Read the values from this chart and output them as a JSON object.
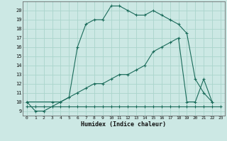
{
  "xlabel": "Humidex (Indice chaleur)",
  "bg_color": "#cce8e4",
  "line_color": "#1a6b5a",
  "grid_color": "#aad4cc",
  "xlim": [
    -0.5,
    23.5
  ],
  "ylim": [
    8.5,
    21.0
  ],
  "xticks": [
    0,
    1,
    2,
    3,
    4,
    5,
    6,
    7,
    8,
    9,
    10,
    11,
    12,
    13,
    14,
    15,
    16,
    17,
    18,
    19,
    20,
    21,
    22,
    23
  ],
  "yticks": [
    9,
    10,
    11,
    12,
    13,
    14,
    15,
    16,
    17,
    18,
    19,
    20
  ],
  "line1_x": [
    0,
    1,
    2,
    3,
    4,
    5,
    6,
    7,
    8,
    9,
    10,
    11,
    12,
    13,
    14,
    15,
    16,
    17,
    18,
    19,
    20,
    21,
    22
  ],
  "line1_y": [
    10,
    9,
    9,
    9.5,
    10,
    10.5,
    16,
    18.5,
    19,
    19,
    20.5,
    20.5,
    20,
    19.5,
    19.5,
    20,
    19.5,
    19,
    18.5,
    17.5,
    12.5,
    11,
    10
  ],
  "line2_x": [
    0,
    3,
    4,
    5,
    6,
    7,
    8,
    9,
    10,
    11,
    12,
    13,
    14,
    15,
    16,
    17,
    18,
    19,
    20,
    21,
    22
  ],
  "line2_y": [
    10,
    10,
    10,
    10.5,
    11,
    11.5,
    12,
    12,
    12.5,
    13,
    13,
    13.5,
    14,
    15.5,
    16,
    16.5,
    17,
    10,
    10,
    12.5,
    10
  ],
  "line3_x": [
    0,
    1,
    2,
    3,
    4,
    5,
    6,
    7,
    8,
    9,
    10,
    11,
    12,
    13,
    14,
    15,
    16,
    17,
    18,
    19,
    20,
    21,
    22,
    23
  ],
  "line3_y": [
    9.5,
    9.5,
    9.5,
    9.5,
    9.5,
    9.5,
    9.5,
    9.5,
    9.5,
    9.5,
    9.5,
    9.5,
    9.5,
    9.5,
    9.5,
    9.5,
    9.5,
    9.5,
    9.5,
    9.5,
    9.5,
    9.5,
    9.5,
    9.5
  ]
}
